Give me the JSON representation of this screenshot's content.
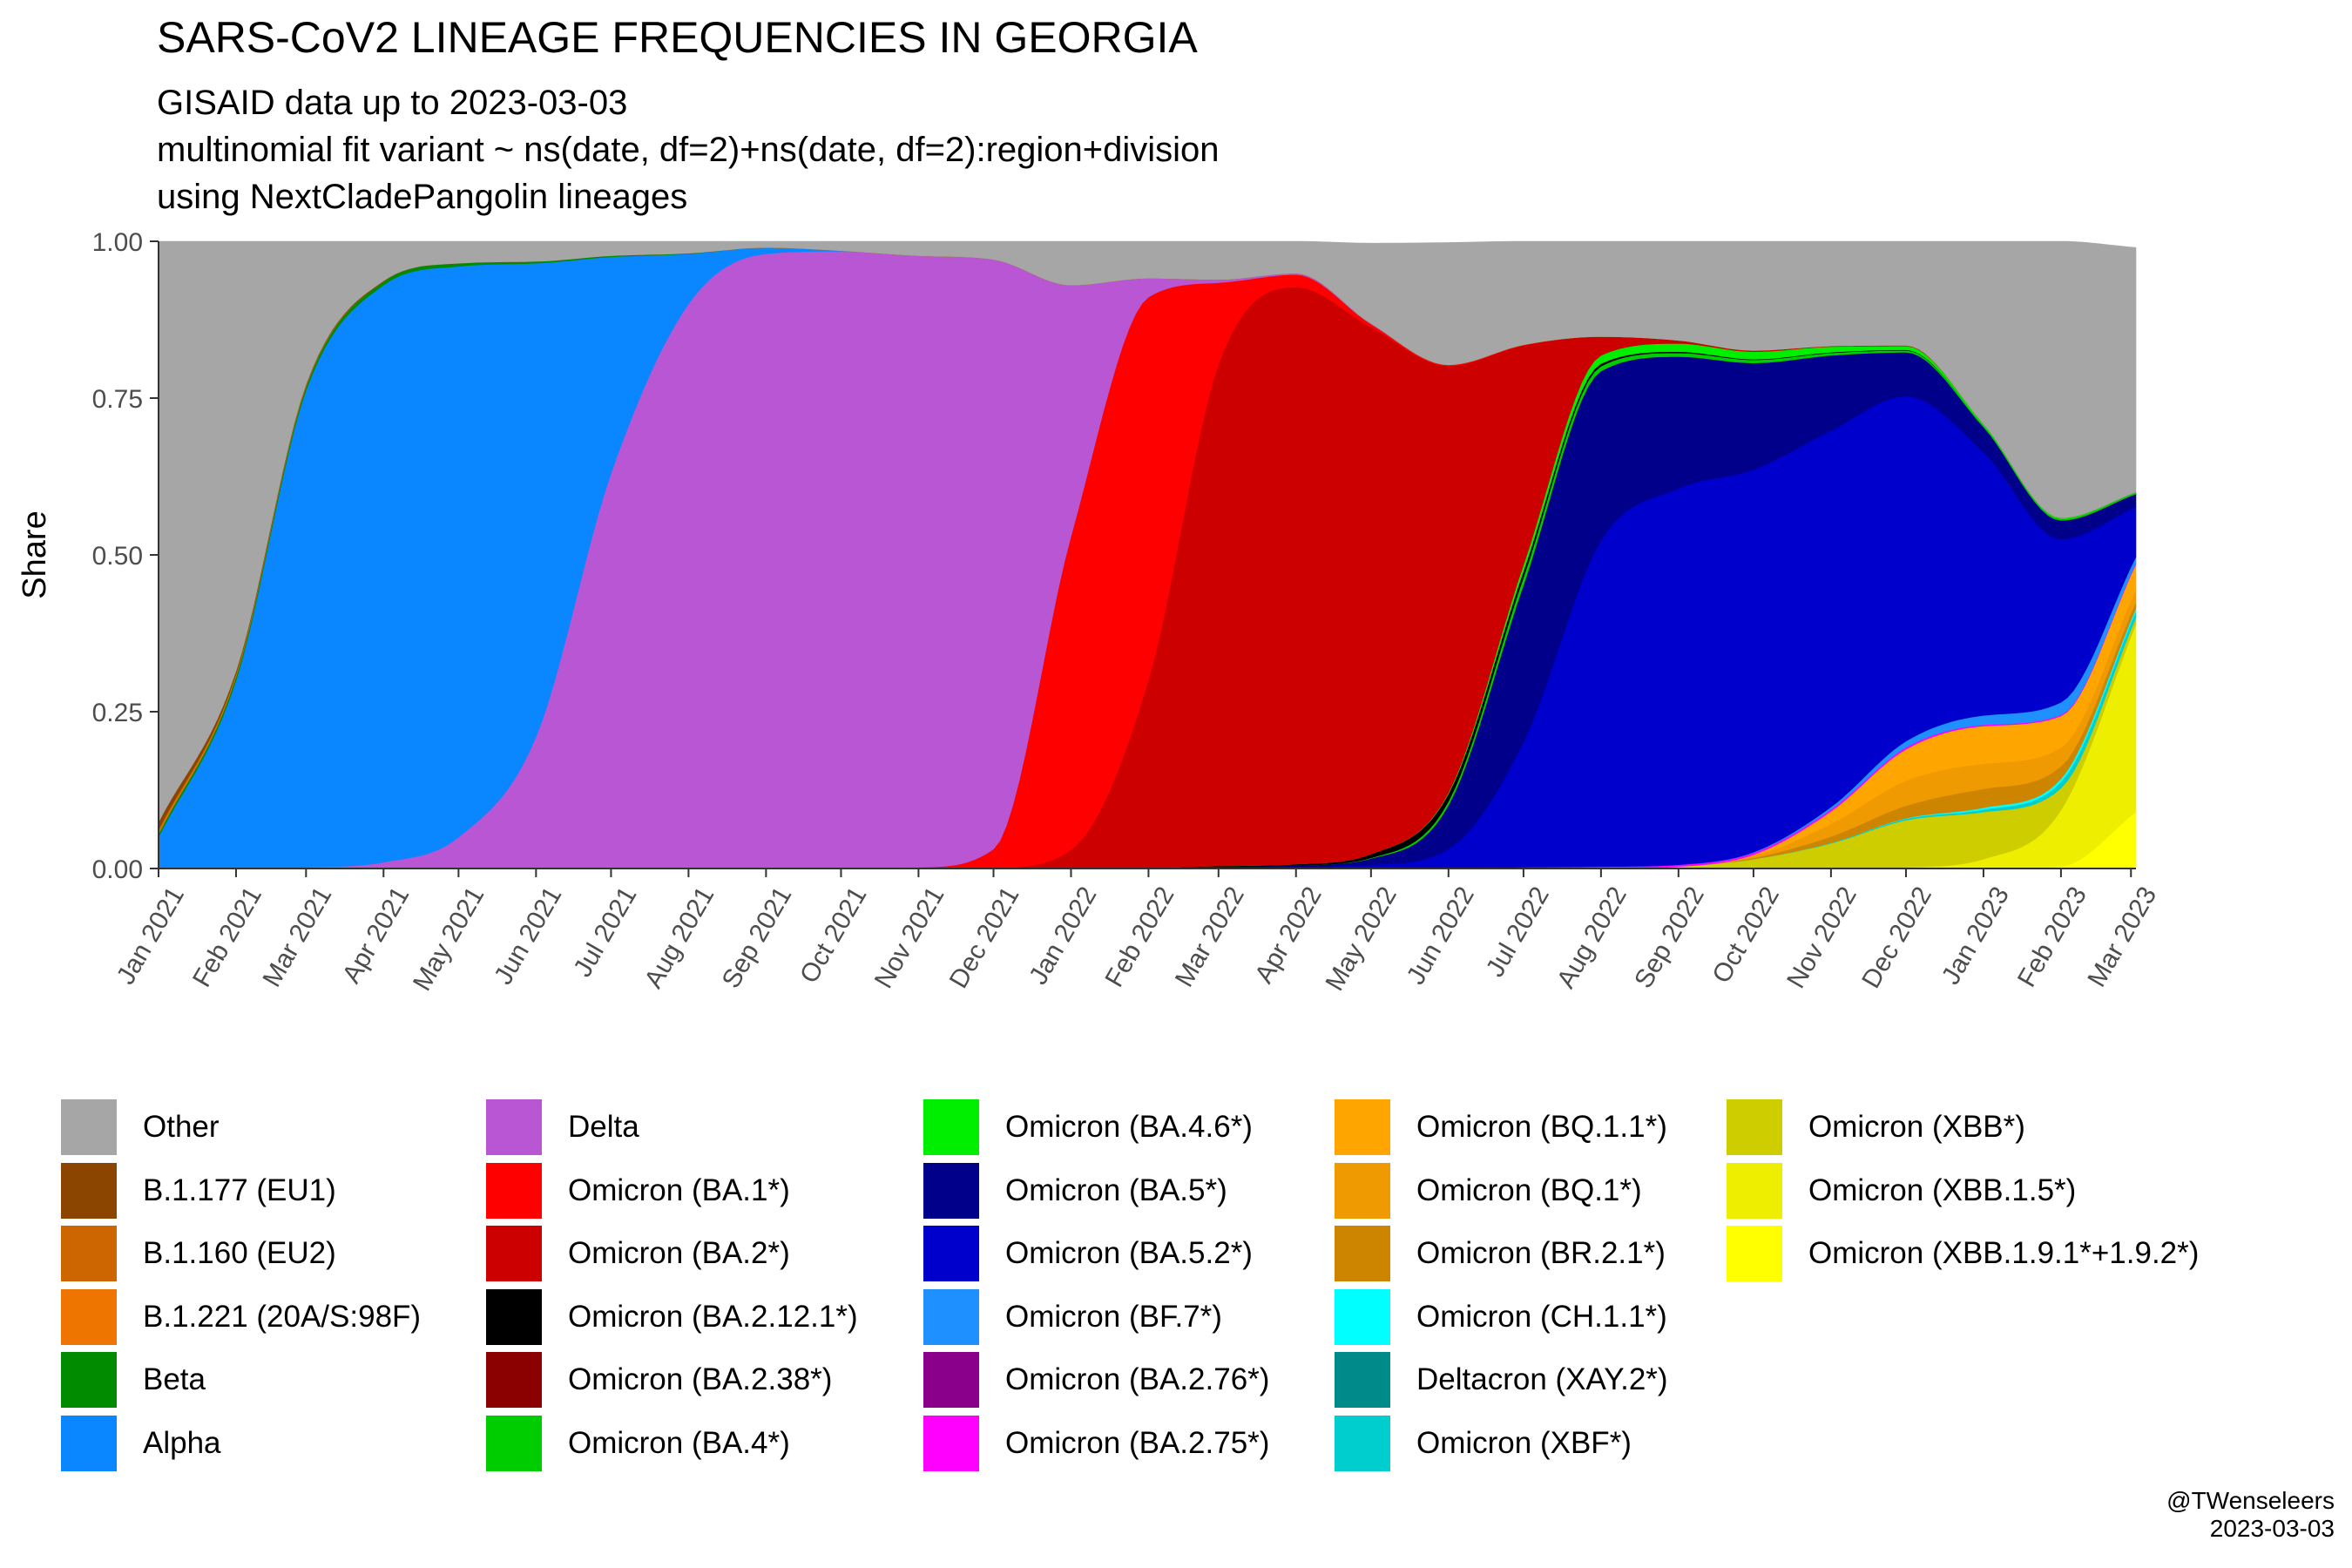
{
  "title": "SARS-CoV2 LINEAGE FREQUENCIES IN GEORGIA",
  "subtitles": [
    "GISAID data up to 2023-03-03",
    "multinomial fit variant ~ ns(date, df=2)+ns(date, df=2):region+division",
    "using NextCladePangolin lineages"
  ],
  "credit": {
    "handle": "@TWenseleers",
    "date": "2023-03-03"
  },
  "chart_data": {
    "type": "area",
    "stacked": true,
    "title": "SARS-CoV2 LINEAGE FREQUENCIES IN GEORGIA",
    "xlabel": "",
    "ylabel": "Share",
    "ylim": [
      0,
      1
    ],
    "xlim": [
      "2021-01-01",
      "2023-03-03"
    ],
    "y_ticks": [
      "0.00",
      "0.25",
      "0.50",
      "0.75",
      "1.00"
    ],
    "x_ticks": [
      "Jan 2021",
      "Feb 2021",
      "Mar 2021",
      "Apr 2021",
      "May 2021",
      "Jun 2021",
      "Jul 2021",
      "Aug 2021",
      "Sep 2021",
      "Oct 2021",
      "Nov 2021",
      "Dec 2021",
      "Jan 2022",
      "Feb 2022",
      "Mar 2022",
      "Apr 2022",
      "May 2022",
      "Jun 2022",
      "Jul 2022",
      "Aug 2022",
      "Sep 2022",
      "Oct 2022",
      "Nov 2022",
      "Dec 2022",
      "Jan 2023",
      "Feb 2023",
      "Mar 2023"
    ],
    "x_tick_dates": [
      "2021-01-01",
      "2021-02-01",
      "2021-03-01",
      "2021-04-01",
      "2021-05-01",
      "2021-06-01",
      "2021-07-01",
      "2021-08-01",
      "2021-09-01",
      "2021-10-01",
      "2021-11-01",
      "2021-12-01",
      "2022-01-01",
      "2022-02-01",
      "2022-03-01",
      "2022-04-01",
      "2022-05-01",
      "2022-06-01",
      "2022-07-01",
      "2022-08-01",
      "2022-09-01",
      "2022-10-01",
      "2022-11-01",
      "2022-12-01",
      "2023-01-01",
      "2023-02-01",
      "2023-03-01"
    ],
    "grid": false,
    "legend_position": "bottom",
    "future_shading": {
      "from": "2023-03-03",
      "color": "#d3d3d3"
    },
    "x": [
      "2021-01-01",
      "2021-02-01",
      "2021-03-01",
      "2021-04-01",
      "2021-05-01",
      "2021-06-01",
      "2021-07-01",
      "2021-08-01",
      "2021-09-01",
      "2021-10-01",
      "2021-11-01",
      "2021-12-01",
      "2022-01-01",
      "2022-02-01",
      "2022-03-01",
      "2022-04-01",
      "2022-05-01",
      "2022-06-01",
      "2022-07-01",
      "2022-08-01",
      "2022-09-01",
      "2022-10-01",
      "2022-11-01",
      "2022-12-01",
      "2023-01-01",
      "2023-02-01",
      "2023-03-03"
    ],
    "series": [
      {
        "name": "Omicron (XBB.1.9.1*+1.9.2*)",
        "color": "#ffff00",
        "values": [
          0,
          0,
          0,
          0,
          0,
          0,
          0,
          0,
          0,
          0,
          0,
          0,
          0,
          0,
          0,
          0,
          0,
          0,
          0,
          0,
          0,
          0,
          0,
          0,
          0,
          0.003,
          0.09
        ]
      },
      {
        "name": "Omicron (XBB.1.5*)",
        "color": "#eeee00",
        "values": [
          0,
          0,
          0,
          0,
          0,
          0,
          0,
          0,
          0,
          0,
          0,
          0,
          0,
          0,
          0,
          0,
          0,
          0,
          0,
          0,
          0,
          0,
          0,
          0.002,
          0.015,
          0.09,
          0.3
        ]
      },
      {
        "name": "Omicron (XBB*)",
        "color": "#cdcd00",
        "values": [
          0,
          0,
          0,
          0,
          0,
          0,
          0,
          0,
          0,
          0,
          0,
          0,
          0,
          0,
          0,
          0,
          0,
          0,
          0,
          0,
          0.003,
          0.015,
          0.04,
          0.075,
          0.075,
          0.035,
          0.01
        ]
      },
      {
        "name": "Omicron (XBF*)",
        "color": "#00cdcd",
        "values": [
          0,
          0,
          0,
          0,
          0,
          0,
          0,
          0,
          0,
          0,
          0,
          0,
          0,
          0,
          0,
          0,
          0,
          0,
          0,
          0,
          0,
          0,
          0.001,
          0.002,
          0.004,
          0.01,
          0.01
        ]
      },
      {
        "name": "Deltacron (XAY.2*)",
        "color": "#008b8b",
        "values": [
          0,
          0,
          0,
          0,
          0,
          0,
          0,
          0,
          0,
          0,
          0,
          0,
          0,
          0,
          0,
          0,
          0,
          0,
          0,
          0,
          0,
          0,
          0,
          0,
          0,
          0,
          0
        ]
      },
      {
        "name": "Omicron (CH.1.1*)",
        "color": "#00ffff",
        "values": [
          0,
          0,
          0,
          0,
          0,
          0,
          0,
          0,
          0,
          0,
          0,
          0,
          0,
          0,
          0,
          0,
          0,
          0,
          0,
          0,
          0,
          0,
          0,
          0.001,
          0.003,
          0.005,
          0.005
        ]
      },
      {
        "name": "Omicron (BR.2.1*)",
        "color": "#cd8500",
        "values": [
          0,
          0,
          0,
          0,
          0,
          0,
          0,
          0,
          0,
          0,
          0,
          0,
          0,
          0,
          0,
          0,
          0,
          0,
          0,
          0,
          0,
          0.002,
          0.01,
          0.02,
          0.03,
          0.02,
          0.01
        ]
      },
      {
        "name": "Omicron (BQ.1*)",
        "color": "#ee9a00",
        "values": [
          0,
          0,
          0,
          0,
          0,
          0,
          0,
          0,
          0,
          0,
          0,
          0,
          0,
          0,
          0,
          0,
          0,
          0,
          0,
          0,
          0,
          0.003,
          0.02,
          0.04,
          0.04,
          0.03,
          0.02
        ]
      },
      {
        "name": "Omicron (BQ.1.1*)",
        "color": "#ffa500",
        "values": [
          0,
          0,
          0,
          0,
          0,
          0,
          0,
          0,
          0,
          0,
          0,
          0,
          0,
          0,
          0,
          0,
          0,
          0,
          0,
          0,
          0,
          0.002,
          0.02,
          0.05,
          0.06,
          0.05,
          0.04
        ]
      },
      {
        "name": "Omicron (BA.2.75*)",
        "color": "#ff00ff",
        "values": [
          0,
          0,
          0,
          0,
          0,
          0,
          0,
          0,
          0,
          0,
          0,
          0,
          0,
          0,
          0,
          0,
          0,
          0.001,
          0.002,
          0.003,
          0.003,
          0.003,
          0.003,
          0.003,
          0.002,
          0.002,
          0.002
        ]
      },
      {
        "name": "Omicron (BA.2.76*)",
        "color": "#8b008b",
        "values": [
          0,
          0,
          0,
          0,
          0,
          0,
          0,
          0,
          0,
          0,
          0,
          0,
          0,
          0,
          0,
          0,
          0,
          0,
          0,
          0,
          0,
          0,
          0,
          0,
          0,
          0,
          0
        ]
      },
      {
        "name": "Omicron (BF.7*)",
        "color": "#1e90ff",
        "values": [
          0,
          0,
          0,
          0,
          0,
          0,
          0,
          0,
          0,
          0,
          0,
          0,
          0,
          0,
          0,
          0,
          0,
          0,
          0,
          0,
          0,
          0.001,
          0.004,
          0.01,
          0.015,
          0.02,
          0.01
        ]
      },
      {
        "name": "Omicron (BA.5.2*)",
        "color": "#0000cd",
        "values": [
          0,
          0,
          0,
          0,
          0,
          0,
          0,
          0,
          0,
          0,
          0,
          0,
          0,
          0.001,
          0.002,
          0.003,
          0.006,
          0.03,
          0.2,
          0.52,
          0.6,
          0.61,
          0.6,
          0.55,
          0.42,
          0.26,
          0.08
        ]
      },
      {
        "name": "Omicron (BA.5*)",
        "color": "#00008b",
        "values": [
          0,
          0,
          0,
          0,
          0,
          0,
          0,
          0,
          0,
          0,
          0,
          0,
          0,
          0,
          0.001,
          0.002,
          0.01,
          0.07,
          0.25,
          0.27,
          0.21,
          0.17,
          0.12,
          0.07,
          0.04,
          0.03,
          0.02
        ]
      },
      {
        "name": "Omicron (BA.4*)",
        "color": "#00cd00",
        "values": [
          0,
          0,
          0,
          0,
          0,
          0,
          0,
          0,
          0,
          0,
          0,
          0,
          0,
          0,
          0,
          0,
          0.001,
          0.006,
          0.012,
          0.008,
          0.006,
          0.005,
          0.004,
          0.003,
          0.002,
          0.002,
          0.002
        ]
      },
      {
        "name": "Omicron (BA.2.38*)",
        "color": "#8b0000",
        "values": [
          0,
          0,
          0,
          0,
          0,
          0,
          0,
          0,
          0,
          0,
          0,
          0,
          0,
          0,
          0,
          0,
          0,
          0,
          0,
          0,
          0,
          0,
          0,
          0,
          0,
          0,
          0
        ]
      },
      {
        "name": "Omicron (BA.2.12.1*)",
        "color": "#000000",
        "values": [
          0,
          0,
          0,
          0,
          0,
          0,
          0,
          0,
          0,
          0,
          0,
          0,
          0,
          0,
          0.001,
          0.002,
          0.006,
          0.012,
          0.01,
          0.004,
          0.002,
          0.001,
          0.001,
          0.001,
          0,
          0,
          0
        ]
      },
      {
        "name": "Omicron (BA.4.6*)",
        "color": "#00ee00",
        "values": [
          0,
          0,
          0,
          0,
          0,
          0,
          0,
          0,
          0,
          0,
          0,
          0,
          0,
          0,
          0,
          0,
          0,
          0.002,
          0.01,
          0.013,
          0.013,
          0.012,
          0.009,
          0.006,
          0.003,
          0.002,
          0.001
        ]
      },
      {
        "name": "Omicron (BA.2*)",
        "color": "#cd0000",
        "values": [
          0,
          0,
          0,
          0,
          0,
          0,
          0,
          0,
          0,
          0,
          0,
          0.001,
          0.03,
          0.3,
          0.8,
          0.92,
          0.84,
          0.68,
          0.35,
          0.03,
          0.005,
          0.002,
          0.001,
          0.001,
          0,
          0,
          0
        ]
      },
      {
        "name": "Omicron (BA.1*)",
        "color": "#ff0000",
        "values": [
          0,
          0,
          0,
          0,
          0,
          0,
          0,
          0,
          0,
          0,
          0.002,
          0.03,
          0.5,
          0.61,
          0.13,
          0.02,
          0.005,
          0.002,
          0.001,
          0,
          0,
          0,
          0,
          0,
          0,
          0,
          0
        ]
      },
      {
        "name": "Delta",
        "color": "#b956d3",
        "values": [
          0,
          0,
          0.002,
          0.01,
          0.05,
          0.21,
          0.63,
          0.9,
          0.98,
          0.984,
          0.975,
          0.94,
          0.4,
          0.03,
          0.005,
          0.002,
          0.001,
          0,
          0,
          0,
          0,
          0,
          0,
          0,
          0,
          0,
          0
        ]
      },
      {
        "name": "Alpha",
        "color": "#0a86ff",
        "values": [
          0.05,
          0.3,
          0.76,
          0.92,
          0.91,
          0.755,
          0.345,
          0.08,
          0.01,
          0.001,
          0,
          0,
          0,
          0,
          0,
          0,
          0,
          0,
          0,
          0,
          0,
          0,
          0,
          0,
          0,
          0,
          0
        ]
      },
      {
        "name": "Beta",
        "color": "#008b00",
        "values": [
          0.005,
          0.006,
          0.006,
          0.006,
          0.005,
          0.003,
          0.002,
          0.001,
          0,
          0,
          0,
          0,
          0,
          0,
          0,
          0,
          0,
          0,
          0,
          0,
          0,
          0,
          0,
          0,
          0,
          0,
          0
        ]
      },
      {
        "name": "B.1.221 (20A/S:98F)",
        "color": "#ee7600",
        "values": [
          0.003,
          0.002,
          0.001,
          0,
          0,
          0,
          0,
          0,
          0,
          0,
          0,
          0,
          0,
          0,
          0,
          0,
          0,
          0,
          0,
          0,
          0,
          0,
          0,
          0,
          0,
          0,
          0
        ]
      },
      {
        "name": "B.1.160 (EU2)",
        "color": "#cd6600",
        "values": [
          0.004,
          0.002,
          0.001,
          0,
          0,
          0,
          0,
          0,
          0,
          0,
          0,
          0,
          0,
          0,
          0,
          0,
          0,
          0,
          0,
          0,
          0,
          0,
          0,
          0,
          0,
          0,
          0
        ]
      },
      {
        "name": "B.1.177 (EU1)",
        "color": "#8b4500",
        "values": [
          0.012,
          0.005,
          0.002,
          0.001,
          0,
          0,
          0,
          0,
          0,
          0,
          0,
          0,
          0,
          0,
          0,
          0,
          0,
          0,
          0,
          0,
          0,
          0,
          0,
          0,
          0,
          0,
          0
        ]
      },
      {
        "name": "Other",
        "color": "#a6a6a6",
        "values": [
          0.926,
          0.685,
          0.228,
          0.063,
          0.035,
          0.032,
          0.023,
          0.019,
          0.01,
          0.015,
          0.023,
          0.029,
          0.07,
          0.059,
          0.061,
          0.051,
          0.128,
          0.195,
          0.165,
          0.152,
          0.158,
          0.176,
          0.208,
          0.256,
          0.385,
          0.482,
          0.39
        ]
      }
    ],
    "legend": [
      {
        "label": "Other",
        "color": "#a6a6a6"
      },
      {
        "label": "B.1.177 (EU1)",
        "color": "#8b4500"
      },
      {
        "label": "B.1.160 (EU2)",
        "color": "#cd6600"
      },
      {
        "label": "B.1.221 (20A/S:98F)",
        "color": "#ee7600"
      },
      {
        "label": "Beta",
        "color": "#008b00"
      },
      {
        "label": "Alpha",
        "color": "#0a86ff"
      },
      {
        "label": "Delta",
        "color": "#b956d3"
      },
      {
        "label": "Omicron (BA.1*)",
        "color": "#ff0000"
      },
      {
        "label": "Omicron (BA.2*)",
        "color": "#cd0000"
      },
      {
        "label": "Omicron (BA.2.12.1*)",
        "color": "#000000"
      },
      {
        "label": "Omicron (BA.2.38*)",
        "color": "#8b0000"
      },
      {
        "label": "Omicron (BA.4*)",
        "color": "#00cd00"
      },
      {
        "label": "Omicron (BA.4.6*)",
        "color": "#00ee00"
      },
      {
        "label": "Omicron (BA.5*)",
        "color": "#00008b"
      },
      {
        "label": "Omicron (BA.5.2*)",
        "color": "#0000cd"
      },
      {
        "label": "Omicron (BF.7*)",
        "color": "#1e90ff"
      },
      {
        "label": "Omicron (BA.2.76*)",
        "color": "#8b008b"
      },
      {
        "label": "Omicron (BA.2.75*)",
        "color": "#ff00ff"
      },
      {
        "label": "Omicron (BQ.1.1*)",
        "color": "#ffa500"
      },
      {
        "label": "Omicron (BQ.1*)",
        "color": "#ee9a00"
      },
      {
        "label": "Omicron (BR.2.1*)",
        "color": "#cd8500"
      },
      {
        "label": "Omicron (CH.1.1*)",
        "color": "#00ffff"
      },
      {
        "label": "Deltacron (XAY.2*)",
        "color": "#008b8b"
      },
      {
        "label": "Omicron (XBF*)",
        "color": "#00cdcd"
      },
      {
        "label": "Omicron (XBB*)",
        "color": "#cdcd00"
      },
      {
        "label": "Omicron (XBB.1.5*)",
        "color": "#eeee00"
      },
      {
        "label": "Omicron (XBB.1.9.1*+1.9.2*)",
        "color": "#ffff00"
      }
    ]
  }
}
